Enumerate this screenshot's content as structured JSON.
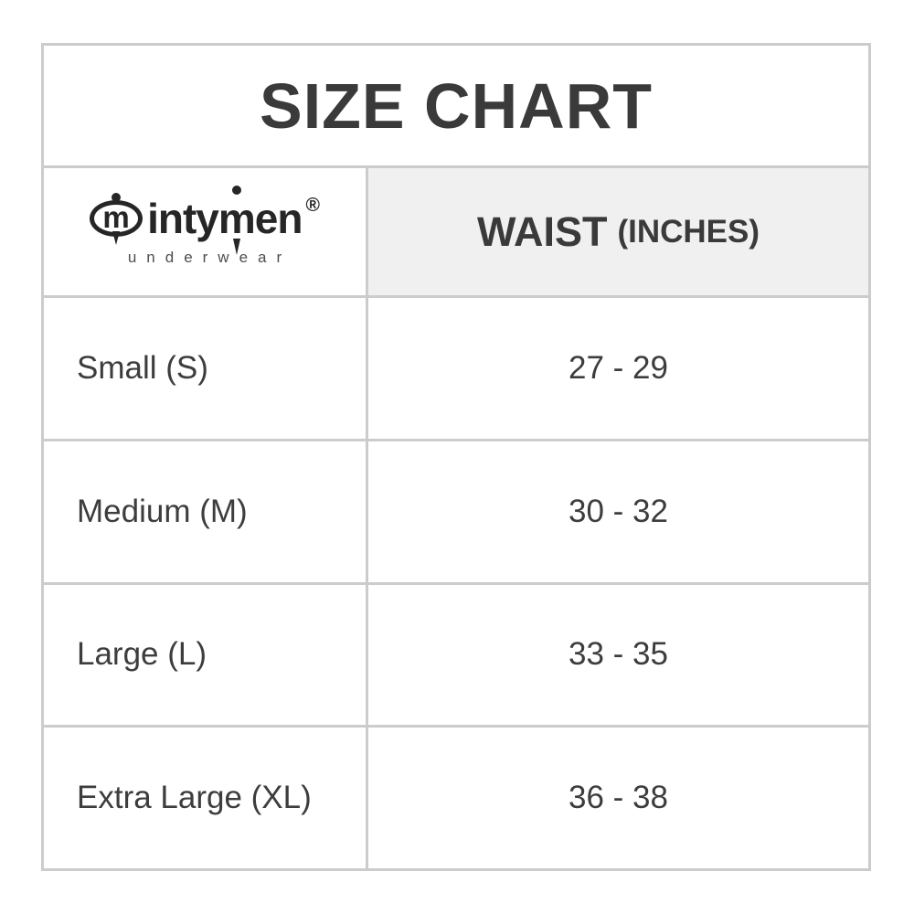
{
  "title": "SIZE CHART",
  "logo": {
    "monogram": "m",
    "brand_part1": "inty",
    "brand_part2": "m",
    "brand_part3": "en",
    "registered": "®",
    "tagline": "underwear"
  },
  "header": {
    "waist_label": "WAIST",
    "waist_unit": "(INCHES)"
  },
  "chart_data": {
    "type": "table",
    "title": "SIZE CHART",
    "columns": [
      "intymen underwear",
      "WAIST (INCHES)"
    ],
    "rows": [
      [
        "Small (S)",
        "27 - 29"
      ],
      [
        "Medium (M)",
        "30 - 32"
      ],
      [
        "Large (L)",
        "33 - 35"
      ],
      [
        "Extra Large (XL)",
        "36 - 38"
      ]
    ]
  },
  "colors": {
    "border": "#cccccc",
    "header_bg": "#f0f0f0",
    "text": "#3d3d3d",
    "title_text": "#3a3a3a",
    "logo": "#262626",
    "tagline_text": "#4d4d4d",
    "page_bg": "#ffffff"
  }
}
